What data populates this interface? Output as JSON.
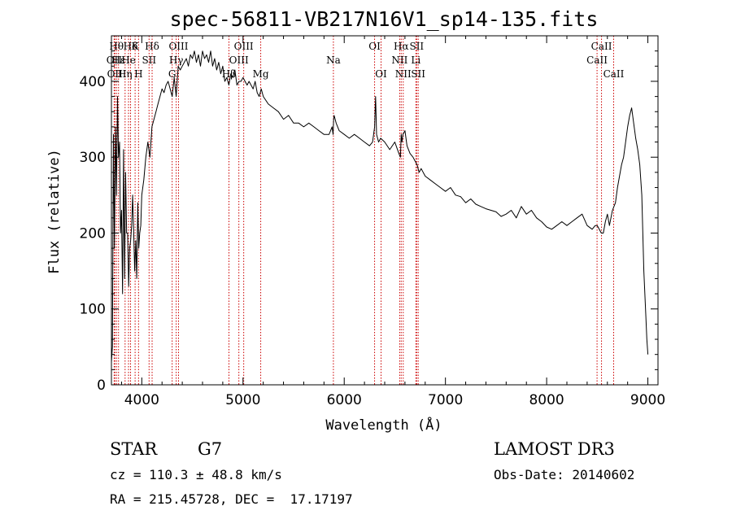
{
  "footer": {
    "object_class": "STAR",
    "subclass": "G7",
    "survey": "LAMOST DR3",
    "redshift": "cz = 110.3 ± 48.8 km/s",
    "obs_date": "Obs-Date: 20140602",
    "coords": "RA = 215.45728, DEC =  17.17197"
  },
  "chart_data": {
    "type": "line",
    "title": "spec-56811-VB217N16V1_sp14-135.fits",
    "xlabel": "Wavelength (Å)",
    "ylabel": "Flux (relative)",
    "xlim": [
      3700,
      9100
    ],
    "ylim": [
      0,
      460
    ],
    "xticks": [
      4000,
      5000,
      6000,
      7000,
      8000,
      9000
    ],
    "yticks": [
      0,
      100,
      200,
      300,
      400
    ],
    "line_color": "#000000",
    "marker_color": "#cc0000",
    "series": [
      {
        "x": [
          3700,
          3710,
          3720,
          3730,
          3740,
          3750,
          3760,
          3770,
          3780,
          3790,
          3800,
          3810,
          3820,
          3830,
          3840,
          3850,
          3860,
          3870,
          3880,
          3890,
          3900,
          3910,
          3920,
          3930,
          3940,
          3950,
          3960,
          3970,
          3980,
          3990,
          4000,
          4020,
          4040,
          4060,
          4080,
          4100,
          4120,
          4140,
          4160,
          4180,
          4200,
          4220,
          4240,
          4260,
          4280,
          4300,
          4320,
          4340,
          4360,
          4380,
          4400,
          4420,
          4440,
          4460,
          4480,
          4500,
          4520,
          4540,
          4560,
          4580,
          4600,
          4620,
          4640,
          4660,
          4680,
          4700,
          4720,
          4740,
          4760,
          4780,
          4800,
          4820,
          4840,
          4860,
          4880,
          4900,
          4920,
          4940,
          4960,
          4980,
          5000,
          5020,
          5040,
          5060,
          5080,
          5100,
          5120,
          5140,
          5160,
          5180,
          5200,
          5250,
          5300,
          5350,
          5400,
          5450,
          5500,
          5550,
          5600,
          5650,
          5700,
          5750,
          5800,
          5850,
          5880,
          5890,
          5895,
          5900,
          5920,
          5950,
          6000,
          6050,
          6100,
          6150,
          6200,
          6250,
          6280,
          6300,
          6310,
          6320,
          6340,
          6360,
          6400,
          6450,
          6500,
          6540,
          6555,
          6563,
          6570,
          6580,
          6600,
          6620,
          6650,
          6680,
          6700,
          6720,
          6740,
          6760,
          6800,
          6850,
          6900,
          6950,
          7000,
          7050,
          7100,
          7150,
          7200,
          7250,
          7300,
          7350,
          7400,
          7450,
          7500,
          7550,
          7600,
          7650,
          7700,
          7750,
          7800,
          7850,
          7900,
          7950,
          8000,
          8050,
          8100,
          8150,
          8200,
          8250,
          8300,
          8350,
          8400,
          8450,
          8480,
          8500,
          8520,
          8540,
          8560,
          8580,
          8600,
          8620,
          8650,
          8680,
          8700,
          8720,
          8740,
          8760,
          8780,
          8800,
          8820,
          8840,
          8860,
          8880,
          8900,
          8920,
          8940,
          8960,
          8980,
          8990,
          9000
        ],
        "y": [
          30,
          50,
          330,
          180,
          340,
          250,
          380,
          300,
          320,
          200,
          230,
          120,
          310,
          140,
          280,
          200,
          200,
          130,
          180,
          190,
          210,
          250,
          200,
          150,
          190,
          140,
          240,
          180,
          200,
          210,
          250,
          270,
          300,
          320,
          300,
          340,
          350,
          360,
          370,
          380,
          390,
          385,
          395,
          400,
          390,
          380,
          405,
          380,
          420,
          415,
          420,
          425,
          430,
          420,
          435,
          430,
          440,
          425,
          435,
          420,
          440,
          430,
          435,
          425,
          440,
          420,
          430,
          415,
          425,
          410,
          420,
          400,
          405,
          395,
          410,
          405,
          415,
          395,
          400,
          400,
          405,
          400,
          395,
          400,
          395,
          390,
          400,
          385,
          380,
          390,
          380,
          370,
          365,
          360,
          350,
          355,
          345,
          345,
          340,
          345,
          340,
          335,
          330,
          330,
          340,
          330,
          350,
          355,
          345,
          335,
          330,
          325,
          330,
          325,
          320,
          315,
          320,
          340,
          380,
          330,
          320,
          325,
          320,
          310,
          320,
          305,
          300,
          330,
          320,
          330,
          335,
          315,
          305,
          300,
          295,
          290,
          280,
          285,
          275,
          270,
          265,
          260,
          255,
          260,
          250,
          248,
          240,
          245,
          238,
          235,
          232,
          230,
          228,
          222,
          225,
          230,
          220,
          235,
          225,
          230,
          220,
          215,
          208,
          205,
          210,
          215,
          210,
          215,
          220,
          225,
          210,
          205,
          210,
          210,
          205,
          200,
          200,
          215,
          225,
          210,
          230,
          240,
          260,
          275,
          290,
          300,
          320,
          340,
          355,
          365,
          345,
          325,
          310,
          290,
          250,
          150,
          90,
          60,
          40
        ]
      }
    ],
    "line_markers": [
      {
        "x": 3727,
        "label": "OII",
        "row": 2
      },
      {
        "x": 3734,
        "label": "OII",
        "row": 3
      },
      {
        "x": 3750,
        "label": "Hθ",
        "row": 1
      },
      {
        "x": 3770,
        "label": "Hε",
        "row": 2
      },
      {
        "x": 3835,
        "label": "Hη",
        "row": 3
      },
      {
        "x": 3869,
        "label": "He",
        "row": 2
      },
      {
        "x": 3889,
        "label": "Hδ",
        "row": 1
      },
      {
        "x": 3934,
        "label": "K",
        "row": 1
      },
      {
        "x": 3968,
        "label": "H",
        "row": 3
      },
      {
        "x": 4072,
        "label": "SII",
        "row": 2
      },
      {
        "x": 4102,
        "label": "Hδ",
        "row": 1
      },
      {
        "x": 4300,
        "label": "G",
        "row": 3
      },
      {
        "x": 4340,
        "label": "Hγ",
        "row": 2
      },
      {
        "x": 4363,
        "label": "OIII",
        "row": 1
      },
      {
        "x": 4861,
        "label": "Hβ",
        "row": 3
      },
      {
        "x": 4959,
        "label": "OIII",
        "row": 2
      },
      {
        "x": 5007,
        "label": "OIII",
        "row": 1
      },
      {
        "x": 5175,
        "label": "Mg",
        "row": 3
      },
      {
        "x": 5893,
        "label": "Na",
        "row": 2
      },
      {
        "x": 6300,
        "label": "OI",
        "row": 1
      },
      {
        "x": 6364,
        "label": "OI",
        "row": 3
      },
      {
        "x": 6548,
        "label": "NII",
        "row": 2
      },
      {
        "x": 6563,
        "label": "Hα",
        "row": 1
      },
      {
        "x": 6583,
        "label": "NII",
        "row": 3
      },
      {
        "x": 6708,
        "label": "Li",
        "row": 2
      },
      {
        "x": 6716,
        "label": "SII",
        "row": 1
      },
      {
        "x": 6731,
        "label": "SII",
        "row": 3
      },
      {
        "x": 8498,
        "label": "CaII",
        "row": 2
      },
      {
        "x": 8542,
        "label": "CaII",
        "row": 1
      },
      {
        "x": 8662,
        "label": "CaII",
        "row": 3
      }
    ]
  }
}
